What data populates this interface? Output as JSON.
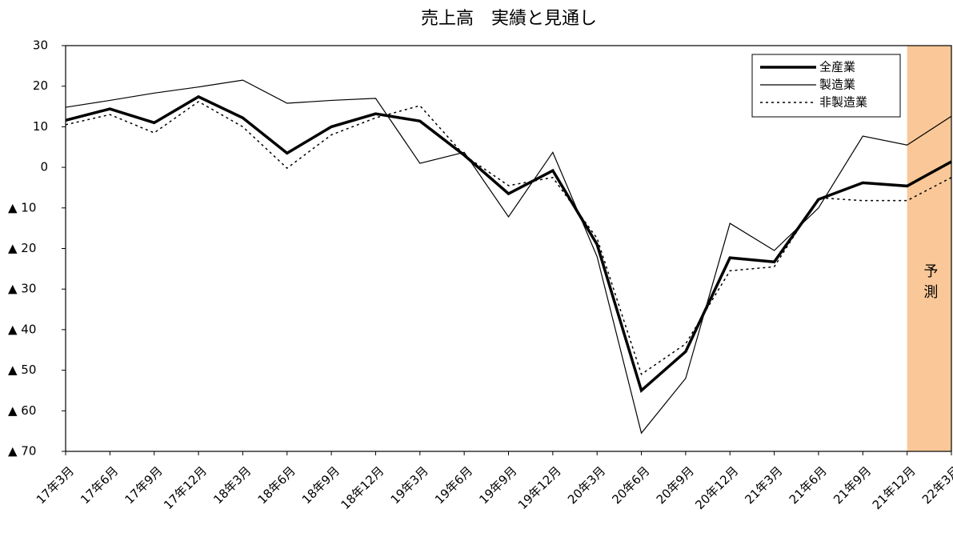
{
  "chart_data": {
    "type": "line",
    "title": "売上高　実績と見通し",
    "categories": [
      "17年3月",
      "17年6月",
      "17年9月",
      "17年12月",
      "18年3月",
      "18年6月",
      "18年9月",
      "18年12月",
      "19年3月",
      "19年6月",
      "19年9月",
      "19年12月",
      "20年3月",
      "20年6月",
      "20年9月",
      "20年12月",
      "21年3月",
      "21年6月",
      "21年9月",
      "21年12月",
      "22年3月"
    ],
    "series": [
      {
        "name": "全産業",
        "color": "#000000",
        "width": 3.5,
        "dash": "none",
        "values": [
          11.6,
          14.4,
          11,
          17.4,
          12.2,
          3.5,
          10,
          13.2,
          11.4,
          3,
          -6.5,
          -0.8,
          -19,
          -55,
          -45.4,
          -22.3,
          -23.3,
          -7.9,
          -3.8,
          -4.6,
          1.4
        ]
      },
      {
        "name": "製造業",
        "color": "#000000",
        "width": 1.2,
        "dash": "none",
        "values": [
          14.8,
          16.5,
          18.3,
          19.8,
          21.5,
          15.8,
          16.5,
          17,
          1,
          3.7,
          -12.2,
          3.7,
          -22,
          -65.5,
          -52,
          -13.8,
          -20.5,
          -10,
          7.7,
          5.5,
          12.6
        ]
      },
      {
        "name": "非製造業",
        "color": "#000000",
        "width": 1.5,
        "dash": "3,4",
        "values": [
          10.5,
          13,
          8.5,
          16.2,
          10,
          -0.2,
          8,
          12.2,
          15.2,
          3,
          -4.5,
          -2.5,
          -17.5,
          -51,
          -43.5,
          -25.5,
          -24.5,
          -7.5,
          -8.2,
          -8.2,
          -2.5
        ]
      }
    ],
    "ylim": [
      -70,
      30
    ],
    "yticks": [
      {
        "value": -70,
        "label": "▲ 70"
      },
      {
        "value": -60,
        "label": "▲ 60"
      },
      {
        "value": -50,
        "label": "▲ 50"
      },
      {
        "value": -40,
        "label": "▲ 40"
      },
      {
        "value": -30,
        "label": "▲ 30"
      },
      {
        "value": -20,
        "label": "▲ 20"
      },
      {
        "value": -10,
        "label": "▲ 10"
      },
      0,
      10,
      20,
      30
    ],
    "forecast_label": "予測",
    "forecast_color": "#fac898",
    "legend": "top-right",
    "grid": false
  }
}
